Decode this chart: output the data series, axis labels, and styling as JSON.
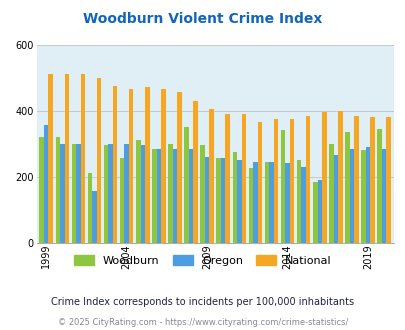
{
  "title": "Woodburn Violent Crime Index",
  "title_color": "#1166bb",
  "subtitle": "Crime Index corresponds to incidents per 100,000 inhabitants",
  "footer": "© 2025 CityRating.com - https://www.cityrating.com/crime-statistics/",
  "years": [
    1999,
    2000,
    2001,
    2002,
    2003,
    2004,
    2005,
    2006,
    2007,
    2008,
    2009,
    2010,
    2011,
    2012,
    2013,
    2014,
    2015,
    2016,
    2017,
    2018,
    2019,
    2020
  ],
  "woodburn": [
    320,
    320,
    300,
    210,
    295,
    255,
    310,
    285,
    300,
    350,
    295,
    255,
    275,
    225,
    245,
    340,
    250,
    185,
    300,
    335,
    280,
    345
  ],
  "oregon": [
    355,
    300,
    300,
    155,
    300,
    300,
    295,
    285,
    285,
    285,
    260,
    255,
    250,
    245,
    245,
    240,
    230,
    190,
    265,
    285,
    290,
    285
  ],
  "national": [
    510,
    510,
    510,
    500,
    475,
    465,
    470,
    465,
    455,
    430,
    405,
    390,
    390,
    365,
    375,
    375,
    385,
    395,
    400,
    385,
    380,
    380
  ],
  "woodburn_color": "#8dc63f",
  "oregon_color": "#4d9de0",
  "national_color": "#f5a623",
  "bg_color": "#e0eff5",
  "ylim": [
    0,
    600
  ],
  "yticks": [
    0,
    200,
    400,
    600
  ],
  "tick_years": [
    1999,
    2004,
    2009,
    2014,
    2019
  ],
  "bar_width": 0.28,
  "figsize": [
    4.06,
    3.3
  ],
  "dpi": 100
}
